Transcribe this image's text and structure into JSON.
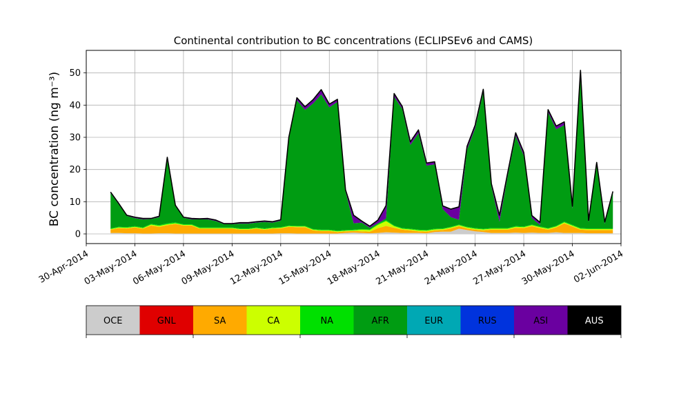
{
  "chart_data": {
    "type": "area",
    "stacked": true,
    "title": "Continental contribution to BC concentrations (ECLIPSEv6 and CAMS)",
    "ylabel": "BC concentration (ng m⁻³)",
    "ylim": [
      -3,
      57
    ],
    "xlim": [
      "2014-04-30T00:00",
      "2014-06-02T00:00"
    ],
    "grid": true,
    "x_tick_labels": [
      "30-Apr-2014",
      "03-May-2014",
      "06-May-2014",
      "09-May-2014",
      "12-May-2014",
      "15-May-2014",
      "18-May-2014",
      "21-May-2014",
      "24-May-2014",
      "27-May-2014",
      "30-May-2014",
      "02-Jun-2014"
    ],
    "y_ticks": [
      0,
      10,
      20,
      30,
      40,
      50
    ],
    "x": [
      "2014-05-01T12:00",
      "2014-05-02T00:00",
      "2014-05-02T12:00",
      "2014-05-03T00:00",
      "2014-05-03T12:00",
      "2014-05-04T00:00",
      "2014-05-04T12:00",
      "2014-05-05T00:00",
      "2014-05-05T12:00",
      "2014-05-06T00:00",
      "2014-05-06T12:00",
      "2014-05-07T00:00",
      "2014-05-07T12:00",
      "2014-05-08T00:00",
      "2014-05-08T12:00",
      "2014-05-09T00:00",
      "2014-05-09T12:00",
      "2014-05-10T00:00",
      "2014-05-10T12:00",
      "2014-05-11T00:00",
      "2014-05-11T12:00",
      "2014-05-12T00:00",
      "2014-05-12T12:00",
      "2014-05-13T00:00",
      "2014-05-13T12:00",
      "2014-05-14T00:00",
      "2014-05-14T12:00",
      "2014-05-15T00:00",
      "2014-05-15T12:00",
      "2014-05-16T00:00",
      "2014-05-16T12:00",
      "2014-05-17T00:00",
      "2014-05-17T12:00",
      "2014-05-18T00:00",
      "2014-05-18T12:00",
      "2014-05-19T00:00",
      "2014-05-19T12:00",
      "2014-05-20T00:00",
      "2014-05-20T12:00",
      "2014-05-21T00:00",
      "2014-05-21T12:00",
      "2014-05-22T00:00",
      "2014-05-22T12:00",
      "2014-05-23T00:00",
      "2014-05-23T12:00",
      "2014-05-24T00:00",
      "2014-05-24T12:00",
      "2014-05-25T00:00",
      "2014-05-25T12:00",
      "2014-05-26T00:00",
      "2014-05-26T12:00",
      "2014-05-27T00:00",
      "2014-05-27T12:00",
      "2014-05-28T00:00",
      "2014-05-28T12:00",
      "2014-05-29T00:00",
      "2014-05-29T12:00",
      "2014-05-30T00:00",
      "2014-05-30T12:00",
      "2014-05-31T00:00",
      "2014-05-31T12:00",
      "2014-06-01T00:00",
      "2014-06-01T12:00"
    ],
    "series": [
      {
        "name": "OCE",
        "color": "#cccccc",
        "values": [
          0.3,
          0.3,
          0.2,
          0.2,
          0.1,
          0.1,
          0.2,
          0.2,
          0.1,
          0.1,
          0.1,
          0.1,
          0.1,
          0.1,
          0.1,
          0.1,
          0.1,
          0.1,
          0.1,
          0.1,
          0.1,
          0.2,
          0.2,
          0.1,
          0.1,
          0.1,
          0.1,
          0.1,
          0.1,
          0.3,
          0.4,
          0.3,
          0.2,
          0.3,
          0.5,
          0.4,
          0.3,
          0.3,
          0.3,
          0.2,
          0.6,
          0.7,
          0.7,
          1.6,
          1.2,
          0.8,
          0.6,
          0.3,
          0.3,
          0.3,
          0.4,
          0.3,
          0.4,
          0.3,
          0.3,
          0.5,
          0.3,
          0.3,
          0.3,
          0.2,
          0.2,
          0.2,
          0.2
        ]
      },
      {
        "name": "GNL",
        "color": "#e00000",
        "values": [
          0,
          0,
          0,
          0,
          0,
          0,
          0,
          0,
          0,
          0,
          0,
          0,
          0,
          0,
          0,
          0,
          0,
          0,
          0,
          0,
          0,
          0,
          0,
          0,
          0,
          0,
          0,
          0,
          0,
          0,
          0,
          0,
          0,
          0,
          0,
          0,
          0,
          0,
          0,
          0,
          0,
          0,
          0,
          0,
          0,
          0,
          0,
          0,
          0,
          0,
          0,
          0,
          0,
          0,
          0,
          0,
          0,
          0,
          0,
          0,
          0,
          0,
          0
        ]
      },
      {
        "name": "SA",
        "color": "#ffaa00",
        "values": [
          1.0,
          1.5,
          1.5,
          1.8,
          1.5,
          2.5,
          2.0,
          2.5,
          3.0,
          2.5,
          2.5,
          1.5,
          1.5,
          1.5,
          1.5,
          1.5,
          1.2,
          1.2,
          1.5,
          1.2,
          1.5,
          1.5,
          2.0,
          2.0,
          2.0,
          1.0,
          0.8,
          0.8,
          0.5,
          0.5,
          0.5,
          0.5,
          0.5,
          1.5,
          2.0,
          1.5,
          1.0,
          0.8,
          0.5,
          0.5,
          0.5,
          0.5,
          1.0,
          0.8,
          0.5,
          0.5,
          0.5,
          1.0,
          1.0,
          1.0,
          1.5,
          1.5,
          2.0,
          1.5,
          1.0,
          1.5,
          3.0,
          2.0,
          1.0,
          1.0,
          1.0,
          1.0,
          1.0
        ]
      },
      {
        "name": "CA",
        "color": "#ccff00",
        "values": [
          0.2,
          0.2,
          0.2,
          0.2,
          0.2,
          0.3,
          0.3,
          0.3,
          0.2,
          0.2,
          0.2,
          0.2,
          0.2,
          0.2,
          0.2,
          0.2,
          0.2,
          0.2,
          0.2,
          0.2,
          0.2,
          0.2,
          0.2,
          0.2,
          0.2,
          0.2,
          0.2,
          0.2,
          0.2,
          0.2,
          0.2,
          0.5,
          0.5,
          1.0,
          1.5,
          0.5,
          0.3,
          0.3,
          0.3,
          0.3,
          0.3,
          0.3,
          0.3,
          0.3,
          0.3,
          0.3,
          0.3,
          0.3,
          0.3,
          0.3,
          0.3,
          0.3,
          0.3,
          0.3,
          0.3,
          0.3,
          0.3,
          0.3,
          0.3,
          0.3,
          0.3,
          0.3,
          0.3
        ]
      },
      {
        "name": "NA",
        "color": "#00e000",
        "values": [
          0.2,
          0.2,
          0.2,
          0.2,
          0.2,
          0.2,
          0.2,
          0.3,
          0.3,
          0.2,
          0.2,
          0.2,
          0.2,
          0.2,
          0.2,
          0.2,
          0.2,
          0.2,
          0.2,
          0.2,
          0.2,
          0.2,
          0.2,
          0.2,
          0.2,
          0.2,
          0.2,
          0.2,
          0.2,
          0.2,
          0.2,
          0.2,
          0.2,
          0.3,
          0.3,
          0.2,
          0.2,
          0.2,
          0.2,
          0.2,
          0.2,
          0.2,
          0.2,
          0.2,
          0.2,
          0.2,
          0.2,
          0.2,
          0.2,
          0.2,
          0.2,
          0.2,
          0.2,
          0.2,
          0.2,
          0.2,
          0.2,
          0.2,
          0.2,
          0.2,
          0.2,
          0.2,
          0.2
        ]
      },
      {
        "name": "AFR",
        "color": "#009c12",
        "values": [
          11.0,
          7.0,
          3.5,
          2.5,
          2.5,
          1.5,
          2.5,
          20.0,
          5.0,
          2.0,
          1.5,
          2.5,
          2.5,
          2.0,
          1.0,
          1.0,
          1.5,
          1.5,
          1.5,
          2.0,
          1.5,
          2.0,
          27.0,
          39.0,
          36.0,
          39.0,
          42.0,
          38.0,
          40.0,
          12.0,
          2.0,
          2.0,
          0.5,
          0.2,
          0.5,
          40.0,
          37.0,
          26.0,
          30.0,
          20.0,
          20.0,
          6.0,
          3.0,
          1.5,
          24.0,
          31.0,
          42.5,
          13.0,
          2.0,
          16.0,
          28.0,
          22.0,
          2.0,
          0.5,
          36.0,
          30.0,
          30.0,
          5.0,
          48.0,
          2.0,
          20.0,
          1.5,
          11.0
        ]
      },
      {
        "name": "EUR",
        "color": "#00a8b4",
        "values": [
          0,
          0,
          0,
          0,
          0,
          0,
          0,
          0,
          0,
          0,
          0,
          0,
          0,
          0,
          0,
          0,
          0,
          0,
          0,
          0,
          0,
          0,
          0,
          0,
          0,
          0,
          0,
          0,
          0,
          0,
          0,
          0,
          0,
          0,
          0,
          0,
          0,
          0,
          0,
          0,
          0,
          0,
          0,
          0,
          0,
          0,
          0,
          0,
          0,
          0,
          0,
          0,
          0,
          0,
          0,
          0,
          0,
          0,
          0,
          0,
          0,
          0,
          0
        ]
      },
      {
        "name": "RUS",
        "color": "#0033dd",
        "values": [
          0,
          0,
          0,
          0,
          0,
          0,
          0,
          0,
          0,
          0,
          0,
          0,
          0,
          0,
          0,
          0,
          0,
          0,
          0,
          0,
          0,
          0,
          0,
          0,
          0,
          0,
          0,
          0,
          0,
          0,
          0,
          0,
          0,
          0,
          0,
          0,
          0,
          0,
          0,
          0,
          0,
          0,
          0,
          0,
          0,
          0,
          0,
          0,
          0,
          0,
          0,
          0,
          0,
          0,
          0,
          0,
          0,
          0,
          0,
          0,
          0,
          0,
          0
        ]
      },
      {
        "name": "ASI",
        "color": "#6a00a0",
        "values": [
          0.3,
          0.3,
          0.2,
          0.3,
          0.3,
          0.2,
          0.3,
          0.5,
          0.3,
          0.2,
          0.3,
          0.2,
          0.3,
          0.3,
          0.2,
          0.2,
          0.3,
          0.3,
          0.3,
          0.3,
          0.3,
          0.3,
          0.4,
          0.8,
          1.0,
          1.2,
          1.5,
          1.0,
          0.8,
          0.5,
          2.5,
          0.5,
          0.5,
          1.0,
          4.0,
          1.0,
          0.8,
          1.0,
          1.0,
          0.8,
          0.8,
          1.0,
          2.5,
          4.0,
          1.0,
          1.0,
          0.8,
          0.8,
          2.0,
          1.0,
          1.0,
          1.0,
          0.8,
          0.8,
          0.8,
          1.0,
          1.0,
          0.8,
          1.0,
          0.5,
          0.5,
          0.5,
          0.5
        ]
      },
      {
        "name": "AUS",
        "color": "#000000",
        "values": [
          0,
          0,
          0,
          0,
          0,
          0,
          0,
          0,
          0,
          0,
          0,
          0,
          0,
          0,
          0,
          0,
          0,
          0,
          0,
          0,
          0,
          0,
          0,
          0,
          0,
          0,
          0,
          0,
          0,
          0,
          0,
          0,
          0,
          0,
          0,
          0,
          0,
          0,
          0,
          0,
          0,
          0,
          0,
          0,
          0,
          0,
          0,
          0,
          0,
          0,
          0,
          0,
          0,
          0,
          0,
          0,
          0,
          0,
          0,
          0,
          0,
          0,
          0
        ]
      }
    ]
  },
  "colorbar": {
    "entries": [
      {
        "label": "OCE",
        "color": "#cccccc",
        "text_color": "#000000"
      },
      {
        "label": "GNL",
        "color": "#e00000",
        "text_color": "#000000"
      },
      {
        "label": "SA",
        "color": "#ffaa00",
        "text_color": "#000000"
      },
      {
        "label": "CA",
        "color": "#ccff00",
        "text_color": "#000000"
      },
      {
        "label": "NA",
        "color": "#00e000",
        "text_color": "#000000"
      },
      {
        "label": "AFR",
        "color": "#009c12",
        "text_color": "#000000"
      },
      {
        "label": "EUR",
        "color": "#00a8b4",
        "text_color": "#000000"
      },
      {
        "label": "RUS",
        "color": "#0033dd",
        "text_color": "#000000"
      },
      {
        "label": "ASI",
        "color": "#6a00a0",
        "text_color": "#000000"
      },
      {
        "label": "AUS",
        "color": "#000000",
        "text_color": "#ffffff"
      }
    ]
  }
}
